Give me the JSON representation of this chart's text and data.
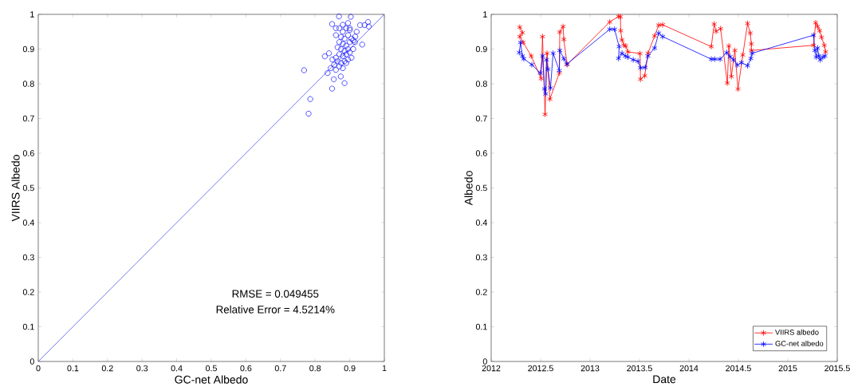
{
  "chart_data": [
    {
      "type": "scatter",
      "xlabel": "GC-net Albedo",
      "ylabel": "VIIRS  Albedo",
      "xlim": [
        0,
        1
      ],
      "ylim": [
        0,
        1
      ],
      "xticks": [
        0,
        0.1,
        0.2,
        0.3,
        0.4,
        0.5,
        0.6,
        0.7,
        0.8,
        0.9,
        1
      ],
      "yticks": [
        0,
        0.1,
        0.2,
        0.3,
        0.4,
        0.5,
        0.6,
        0.7,
        0.8,
        0.9,
        1
      ],
      "marker": "circle",
      "annotations": [
        "RMSE = 0.049455",
        "Relative Error = 4.5214%"
      ],
      "series": [
        {
          "color": "#0000ff",
          "x": [
            0.869,
            0.903,
            0.849,
            0.93,
            0.953,
            0.955,
            0.943,
            0.936,
            0.916,
            0.768,
            0.828,
            0.84,
            0.836,
            0.849,
            0.885,
            0.874,
            0.854,
            0.786,
            0.781,
            0.87,
            0.88,
            0.89,
            0.9,
            0.86,
            0.875,
            0.885,
            0.895,
            0.905,
            0.87,
            0.88,
            0.89,
            0.9,
            0.91,
            0.865,
            0.875,
            0.885,
            0.895,
            0.87,
            0.88,
            0.89,
            0.86,
            0.85,
            0.865,
            0.875,
            0.885,
            0.895,
            0.905,
            0.855,
            0.87,
            0.88,
            0.845,
            0.86,
            0.89,
            0.9,
            0.91,
            0.915,
            0.88,
            0.895,
            0.86,
            0.92,
            0.9
          ],
          "values": [
            0.994,
            0.993,
            0.972,
            0.969,
            0.978,
            0.965,
            0.969,
            0.913,
            0.936,
            0.839,
            0.879,
            0.888,
            0.831,
            0.786,
            0.802,
            0.821,
            0.813,
            0.756,
            0.714,
            0.96,
            0.95,
            0.96,
            0.955,
            0.94,
            0.935,
            0.93,
            0.94,
            0.93,
            0.92,
            0.915,
            0.91,
            0.92,
            0.925,
            0.905,
            0.9,
            0.895,
            0.9,
            0.885,
            0.88,
            0.885,
            0.875,
            0.87,
            0.865,
            0.86,
            0.865,
            0.87,
            0.875,
            0.855,
            0.85,
            0.845,
            0.845,
            0.84,
            0.86,
            0.89,
            0.9,
            0.92,
            0.97,
            0.975,
            0.96,
            0.95,
            0.96
          ]
        },
        {
          "type": "line",
          "marker": "none",
          "color": "#5555ee",
          "x": [
            0,
            1
          ],
          "values": [
            0,
            1
          ]
        }
      ]
    },
    {
      "type": "line",
      "xlabel": "Date",
      "ylabel": "Albedo",
      "xlim": [
        2012,
        2015.5
      ],
      "ylim": [
        0,
        1
      ],
      "xticks": [
        2012,
        2012.5,
        2013,
        2013.5,
        2014,
        2014.5,
        2015,
        2015.5
      ],
      "yticks": [
        0,
        0.1,
        0.2,
        0.3,
        0.4,
        0.5,
        0.6,
        0.7,
        0.8,
        0.9,
        1
      ],
      "marker": "cross",
      "line_style": "solid",
      "legend": "bottom right",
      "series": [
        {
          "name": "VIIRS  albedo",
          "color": "#ff0000",
          "x": [
            2012.289,
            2012.316,
            2012.289,
            2012.324,
            2012.405,
            2012.505,
            2012.519,
            2012.545,
            2012.565,
            2012.594,
            2012.689,
            2012.694,
            2012.727,
            2012.735,
            2012.767,
            2013.199,
            2013.288,
            2013.307,
            2013.31,
            2013.323,
            2013.343,
            2013.361,
            2013.383,
            2013.505,
            2013.51,
            2013.553,
            2013.586,
            2013.653,
            2013.694,
            2013.734,
            2014.226,
            2014.255,
            2014.275,
            2014.32,
            2014.388,
            2014.404,
            2014.429,
            2014.464,
            2014.496,
            2014.545,
            2014.593,
            2014.62,
            2014.631,
            2014.631,
            2015.26,
            2015.282,
            2015.301,
            2015.322,
            2015.341,
            2015.369,
            2015.382
          ],
          "values": [
            0.963,
            0.947,
            0.936,
            0.919,
            0.88,
            0.815,
            0.936,
            0.712,
            0.888,
            0.756,
            0.831,
            0.949,
            0.965,
            0.928,
            0.855,
            0.978,
            0.994,
            0.993,
            0.953,
            0.926,
            0.911,
            0.909,
            0.892,
            0.887,
            0.813,
            0.823,
            0.888,
            0.938,
            0.969,
            0.97,
            0.907,
            0.972,
            0.951,
            0.959,
            0.802,
            0.909,
            0.821,
            0.896,
            0.785,
            0.883,
            0.974,
            0.946,
            0.915,
            0.896,
            0.911,
            0.976,
            0.965,
            0.953,
            0.934,
            0.911,
            0.892
          ]
        },
        {
          "name": "GC-net albedo",
          "color": "#0000ff",
          "x": [
            2012.284,
            2012.297,
            2012.316,
            2012.33,
            2012.411,
            2012.497,
            2012.519,
            2012.54,
            2012.551,
            2012.559,
            2012.573,
            2012.6,
            2012.626,
            2012.689,
            2012.694,
            2012.735,
            2012.767,
            2013.199,
            2013.248,
            2013.294,
            2013.288,
            2013.323,
            2013.356,
            2013.383,
            2013.437,
            2013.485,
            2013.51,
            2013.558,
            2013.586,
            2013.653,
            2013.694,
            2013.734,
            2014.226,
            2014.261,
            2014.315,
            2014.382,
            2014.417,
            2014.45,
            2014.49,
            2014.531,
            2014.593,
            2014.626,
            2014.639,
            2015.26,
            2015.274,
            2015.287,
            2015.301,
            2015.314,
            2015.328,
            2015.355,
            2015.376
          ],
          "values": [
            0.89,
            0.919,
            0.88,
            0.872,
            0.855,
            0.831,
            0.88,
            0.785,
            0.771,
            0.869,
            0.842,
            0.788,
            0.888,
            0.838,
            0.896,
            0.872,
            0.857,
            0.957,
            0.957,
            0.907,
            0.873,
            0.888,
            0.88,
            0.877,
            0.869,
            0.865,
            0.846,
            0.847,
            0.88,
            0.903,
            0.946,
            0.936,
            0.871,
            0.871,
            0.871,
            0.89,
            0.878,
            0.869,
            0.854,
            0.861,
            0.852,
            0.873,
            0.888,
            0.94,
            0.896,
            0.877,
            0.903,
            0.88,
            0.869,
            0.877,
            0.88
          ]
        }
      ]
    }
  ]
}
